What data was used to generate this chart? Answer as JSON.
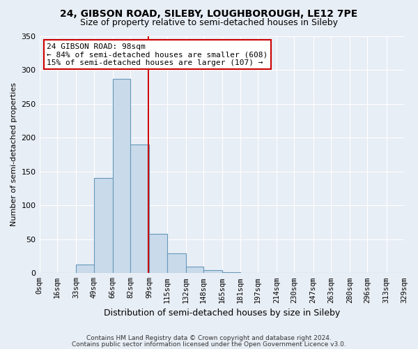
{
  "title1": "24, GIBSON ROAD, SILEBY, LOUGHBOROUGH, LE12 7PE",
  "title2": "Size of property relative to semi-detached houses in Sileby",
  "xlabel": "Distribution of semi-detached houses by size in Sileby",
  "ylabel": "Number of semi-detached properties",
  "bin_edges": [
    0,
    16,
    33,
    49,
    66,
    82,
    99,
    115,
    132,
    148,
    165,
    181,
    197,
    214,
    230,
    247,
    263,
    280,
    296,
    313,
    329
  ],
  "bin_counts": [
    0,
    0,
    13,
    140,
    287,
    190,
    58,
    29,
    10,
    4,
    1,
    0,
    0,
    0,
    0,
    0,
    0,
    0,
    0,
    0
  ],
  "tick_labels": [
    "0sqm",
    "16sqm",
    "33sqm",
    "49sqm",
    "66sqm",
    "82sqm",
    "99sqm",
    "115sqm",
    "132sqm",
    "148sqm",
    "165sqm",
    "181sqm",
    "197sqm",
    "214sqm",
    "230sqm",
    "247sqm",
    "263sqm",
    "280sqm",
    "296sqm",
    "313sqm",
    "329sqm"
  ],
  "bar_color": "#c9daea",
  "bar_edge_color": "#6699bb",
  "property_line_x": 98.5,
  "property_line_color": "#cc0000",
  "annotation_title": "24 GIBSON ROAD: 98sqm",
  "annotation_line1": "← 84% of semi-detached houses are smaller (608)",
  "annotation_line2": "15% of semi-detached houses are larger (107) →",
  "annotation_box_facecolor": "#ffffff",
  "annotation_box_edgecolor": "#cc0000",
  "ylim": [
    0,
    350
  ],
  "yticks": [
    0,
    50,
    100,
    150,
    200,
    250,
    300,
    350
  ],
  "footer1": "Contains HM Land Registry data © Crown copyright and database right 2024.",
  "footer2": "Contains public sector information licensed under the Open Government Licence v3.0.",
  "background_color": "#e8eef5",
  "plot_bg_color": "#e8eef5",
  "grid_color": "#ffffff",
  "title1_fontsize": 10,
  "title2_fontsize": 9,
  "ylabel_fontsize": 8,
  "xlabel_fontsize": 9,
  "tick_fontsize": 7.5,
  "annotation_fontsize": 8,
  "footer_fontsize": 6.5
}
